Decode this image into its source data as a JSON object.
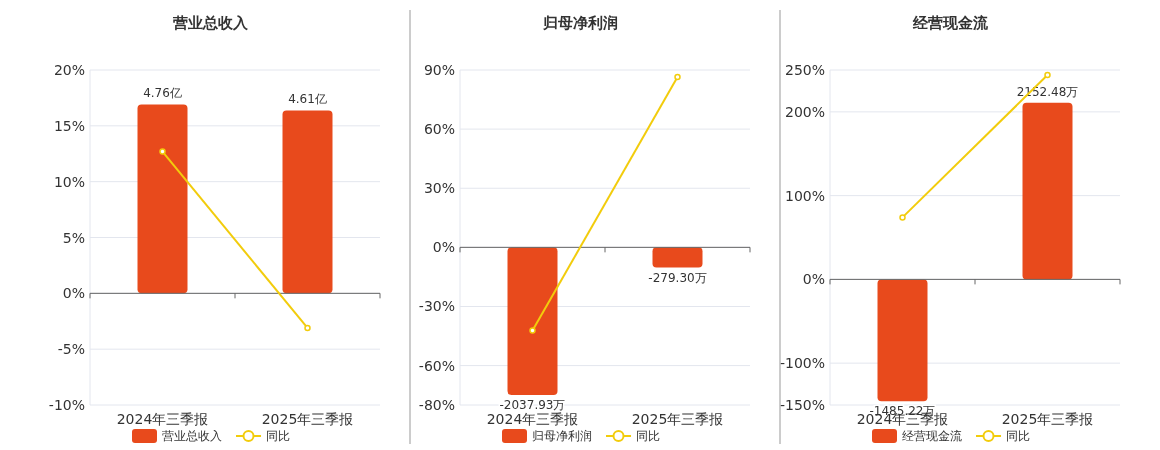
{
  "chart_data": [
    {
      "type": "bar",
      "title": "营业总收入",
      "categories": [
        "2024年三季报",
        "2025年三季报"
      ],
      "ylim": [
        -10,
        20
      ],
      "yticks": [
        {
          "value": -10,
          "label": "-10%"
        },
        {
          "value": -5,
          "label": "-5%"
        },
        {
          "value": 0,
          "label": "0%"
        },
        {
          "value": 5,
          "label": "5%"
        },
        {
          "value": 10,
          "label": "10%"
        },
        {
          "value": 15,
          "label": "15%"
        },
        {
          "value": 20,
          "label": "20%"
        }
      ],
      "y2lim": [
        -2.82,
        5.63
      ],
      "tick_labels": "xy",
      "grid": "y",
      "legend": "bottom",
      "marker": "circle",
      "series": [
        {
          "name": "营业总收入",
          "axis": "y2",
          "color": "#e84a1c",
          "values": [
            4.76,
            4.61
          ],
          "value_labels": [
            "4.76亿",
            "4.61亿"
          ]
        },
        {
          "name": "同比",
          "type": "line",
          "color": "#f2cc0c",
          "values": [
            12.7,
            -3.1
          ]
        }
      ]
    },
    {
      "type": "bar",
      "title": "归母净利润",
      "categories": [
        "2024年三季报",
        "2025年三季报"
      ],
      "ylim": [
        -80,
        90
      ],
      "yticks": [
        {
          "value": -80,
          "label": "-80%"
        },
        {
          "value": -60,
          "label": "-60%"
        },
        {
          "value": -30,
          "label": "-30%"
        },
        {
          "value": 0,
          "label": "0%"
        },
        {
          "value": 30,
          "label": "30%"
        },
        {
          "value": 60,
          "label": "60%"
        },
        {
          "value": 90,
          "label": "90%"
        }
      ],
      "y2lim": [
        -2176,
        2448
      ],
      "tick_labels": "xy",
      "grid": "y",
      "legend": "bottom",
      "marker": "circle",
      "series": [
        {
          "name": "归母净利润",
          "axis": "y2",
          "color": "#e84a1c",
          "values": [
            -2037.93,
            -279.3
          ],
          "value_labels": [
            "-2037.93万",
            "-279.30万"
          ]
        },
        {
          "name": "同比",
          "type": "line",
          "color": "#f2cc0c",
          "values": [
            -42.2,
            86.4
          ]
        }
      ]
    },
    {
      "type": "bar",
      "title": "经营现金流",
      "categories": [
        "2024年三季报",
        "2025年三季报"
      ],
      "ylim": [
        -150,
        250
      ],
      "yticks": [
        {
          "value": -150,
          "label": "-150%"
        },
        {
          "value": -100,
          "label": "-100%"
        },
        {
          "value": 0,
          "label": "0%"
        },
        {
          "value": 100,
          "label": "100%"
        },
        {
          "value": 200,
          "label": "200%"
        },
        {
          "value": 250,
          "label": "250%"
        }
      ],
      "y2lim": [
        -1530,
        2550
      ],
      "tick_labels": "xy",
      "grid": "y",
      "legend": "bottom",
      "marker": "circle",
      "series": [
        {
          "name": "经营现金流",
          "axis": "y2",
          "color": "#e84a1c",
          "values": [
            -1485.22,
            2152.48
          ],
          "value_labels": [
            "-1485.22万",
            "2152.48万"
          ]
        },
        {
          "name": "同比",
          "type": "line",
          "color": "#f2cc0c",
          "values": [
            74,
            244
          ]
        }
      ]
    }
  ]
}
